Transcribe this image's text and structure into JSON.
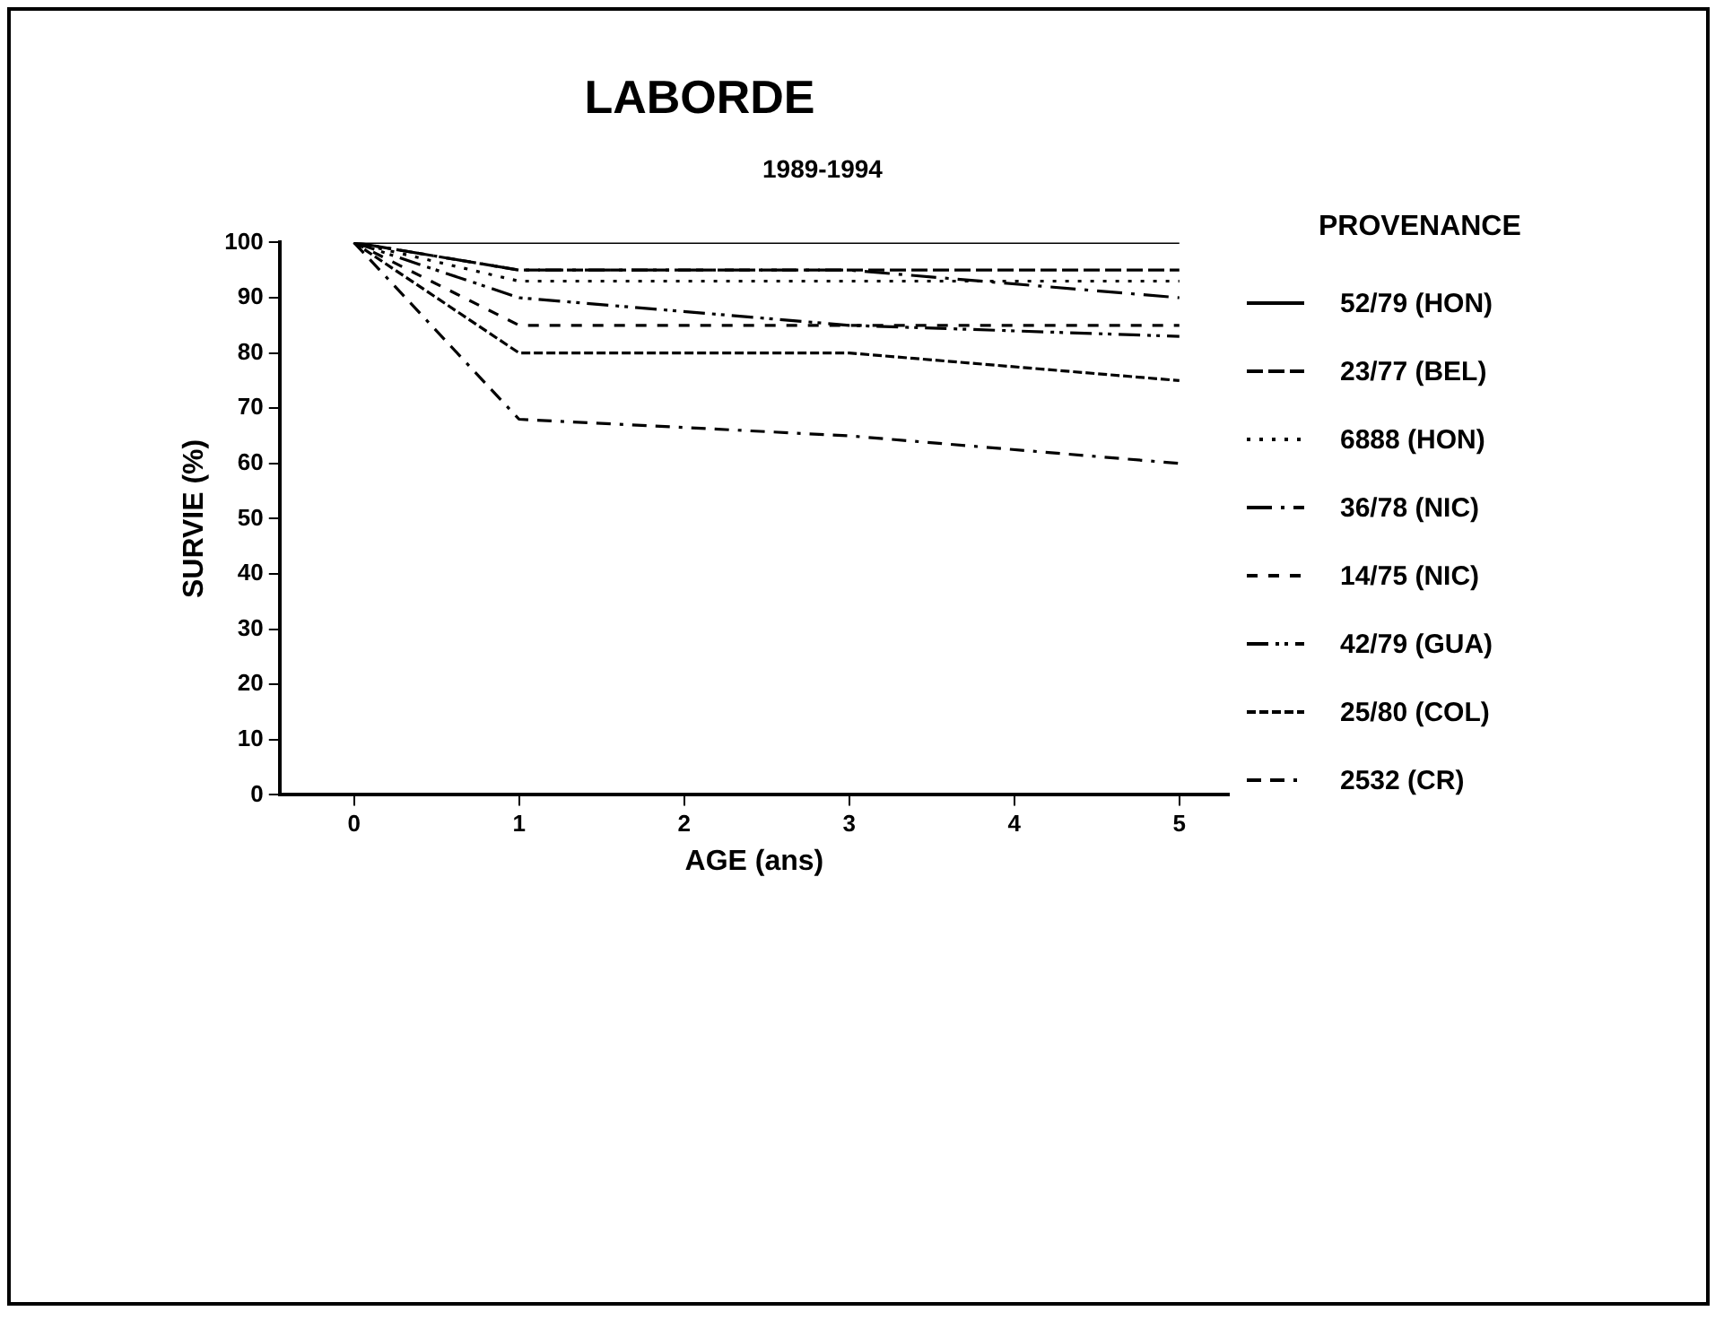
{
  "chart_data": {
    "type": "line",
    "title": "LABORDE",
    "subtitle": "1989-1994",
    "xlabel": "AGE (ans)",
    "ylabel": "SURVIE (%)",
    "legend_title": "PROVENANCE",
    "legend": "right",
    "grid": false,
    "marker": "none",
    "x": [
      0,
      1,
      3,
      5
    ],
    "xlim": [
      -0.45,
      5.3
    ],
    "xticks": [
      0,
      1,
      2,
      3,
      4,
      5
    ],
    "ylim": [
      0,
      100
    ],
    "yticks": [
      0,
      10,
      20,
      30,
      40,
      50,
      60,
      70,
      80,
      90,
      100
    ],
    "series": [
      {
        "name": "52/79 (HON)",
        "color": "#000000",
        "line_style": "solid",
        "values": [
          100,
          100,
          100,
          100
        ]
      },
      {
        "name": "23/77 (BEL)",
        "color": "#000000",
        "line_style": "dashed",
        "values": [
          100,
          95,
          95,
          95
        ]
      },
      {
        "name": "6888 (HON)",
        "color": "#000000",
        "line_style": "dotted",
        "values": [
          100,
          93,
          93,
          93
        ]
      },
      {
        "name": "36/78 (NIC)",
        "color": "#000000",
        "line_style": "dashdot",
        "values": [
          100,
          95,
          95,
          90
        ]
      },
      {
        "name": "14/75 (NIC)",
        "color": "#000000",
        "line_style": "shortdash",
        "values": [
          100,
          85,
          85,
          85
        ]
      },
      {
        "name": "42/79 (GUA)",
        "color": "#000000",
        "line_style": "dashdotdot",
        "values": [
          100,
          90,
          85,
          83
        ]
      },
      {
        "name": "25/80 (COL)",
        "color": "#000000",
        "line_style": "finedash",
        "values": [
          100,
          80,
          80,
          75
        ]
      },
      {
        "name": "2532 (CR)",
        "color": "#000000",
        "line_style": "dashdot2",
        "values": [
          100,
          68,
          65,
          60
        ]
      }
    ]
  }
}
